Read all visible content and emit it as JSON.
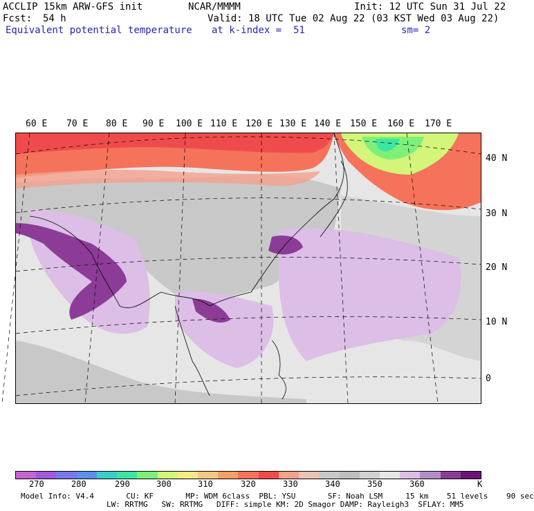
{
  "header": {
    "model": "ACCLIP 15km ARW-GFS init",
    "org": "NCAR/MMMM",
    "init": "Init: 12 UTC Sun 31 Jul 22",
    "fcst_label": "Fcst:",
    "fcst_value": "54 h",
    "valid": "Valid: 18 UTC Tue 02 Aug 22 (03 KST Wed 03 Aug 22)",
    "field": "Equivalent potential temperature",
    "level": "at k-index =  51",
    "smooth": "sm= 2"
  },
  "map": {
    "lon_labels": [
      "60 E",
      "70 E",
      "80 E",
      "90 E",
      "100 E",
      "110 E",
      "120 E",
      "130 E",
      "140 E",
      "150 E",
      "160 E",
      "170 E"
    ],
    "lat_labels": [
      "40 N",
      "30 N",
      "20 N",
      "10 N",
      "0"
    ]
  },
  "colorbar": {
    "colors": [
      "#c864d2",
      "#a05adc",
      "#7a78e6",
      "#5a90ea",
      "#3ccdc8",
      "#3ce6a0",
      "#7ef07a",
      "#d2f57a",
      "#f5eb87",
      "#f5c882",
      "#f5a064",
      "#f5735a",
      "#f04b4b",
      "#f5a08c",
      "#ebc3b4",
      "#c8c8c8",
      "#bebebe",
      "#d2d2d2",
      "#e6e6e6",
      "#dcbee6",
      "#b48cc8",
      "#8c3c96",
      "#6e1478"
    ],
    "ticks": [
      "270",
      "280",
      "290",
      "300",
      "310",
      "320",
      "330",
      "340",
      "350",
      "360"
    ],
    "unit": "K"
  },
  "footer": {
    "line1": "Model Info: V4.4       CU: KF       MP: WDM 6class  PBL: YSU       SF: Noah LSM     15 km    51 levels    90 sec",
    "line2": "LW: RRTMG   SW: RRTMG   DIFF: simple KM: 2D Smagor DAMP: Rayleigh3  SFLAY: MM5"
  }
}
